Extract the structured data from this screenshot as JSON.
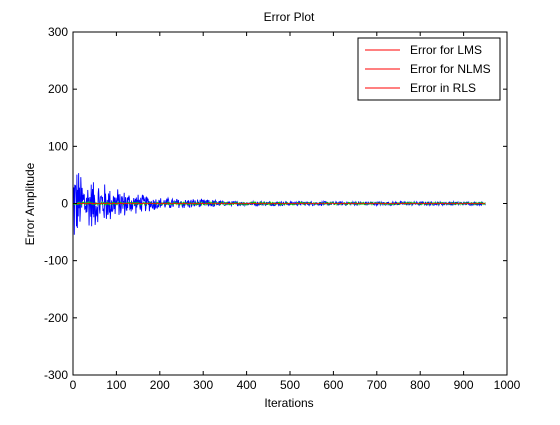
{
  "chart_data": {
    "type": "line",
    "title": "Error Plot",
    "xlabel": "Iterations",
    "ylabel": "Error Amplitude",
    "xlim": [
      0,
      1000
    ],
    "ylim": [
      -300,
      300
    ],
    "xticks": [
      0,
      100,
      200,
      300,
      400,
      500,
      600,
      700,
      800,
      900,
      1000
    ],
    "yticks": [
      -300,
      -200,
      -100,
      0,
      100,
      200,
      300
    ],
    "xtick_labels": [
      "0",
      "100",
      "200",
      "300",
      "400",
      "500",
      "600",
      "700",
      "800",
      "900",
      "1000"
    ],
    "ytick_labels": [
      "-300",
      "-200",
      "-100",
      "0",
      "100",
      "200",
      "300"
    ],
    "grid": false,
    "legend_position": "top-right",
    "iterations": 950,
    "series": [
      {
        "name": "Error for LMS",
        "legend_color": "#ff0000",
        "plot_color": "#0000ff",
        "envelope": [
          {
            "x": 0,
            "amp": 95
          },
          {
            "x": 10,
            "amp": 70
          },
          {
            "x": 30,
            "amp": 50
          },
          {
            "x": 60,
            "amp": 45
          },
          {
            "x": 100,
            "amp": 30
          },
          {
            "x": 140,
            "amp": 20
          },
          {
            "x": 200,
            "amp": 12
          },
          {
            "x": 260,
            "amp": 10
          },
          {
            "x": 310,
            "amp": 8
          },
          {
            "x": 350,
            "amp": 4
          },
          {
            "x": 950,
            "amp": 3
          }
        ]
      },
      {
        "name": "Error for NLMS",
        "legend_color": "#ff0000",
        "plot_color": "#00cc00",
        "envelope": [
          {
            "x": 0,
            "amp": 3
          },
          {
            "x": 950,
            "amp": 2
          }
        ]
      },
      {
        "name": "Error in RLS",
        "legend_color": "#ff0000",
        "plot_color": "#ff0000",
        "envelope": [
          {
            "x": 0,
            "amp": 0.5
          },
          {
            "x": 950,
            "amp": 0.3
          }
        ]
      }
    ],
    "colors": {
      "axis": "#000000",
      "background": "#ffffff"
    }
  }
}
